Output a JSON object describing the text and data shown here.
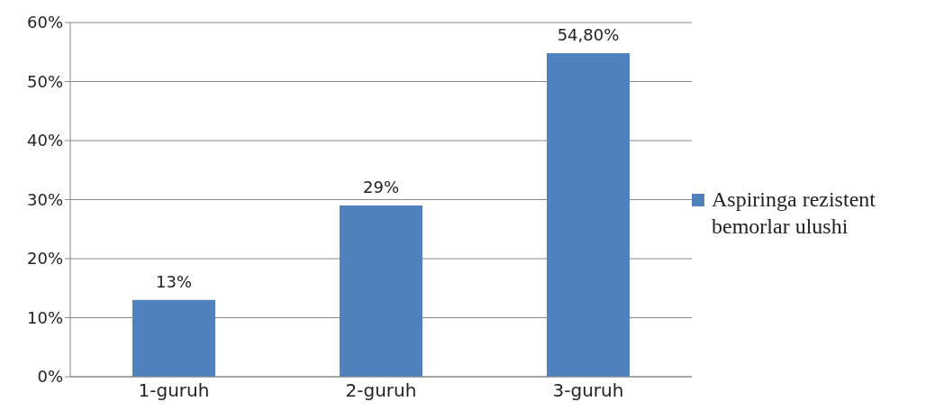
{
  "chart_data": {
    "type": "bar",
    "categories": [
      "1-guruh",
      "2-guruh",
      "3-guruh"
    ],
    "series": [
      {
        "name": "Aspiringa rezistent bemorlar ulushi",
        "color": "#4f81bd",
        "values": [
          13,
          29,
          54.8
        ],
        "value_labels": [
          "13%",
          "29%",
          "54,80%"
        ]
      }
    ],
    "ylim": [
      0,
      60
    ],
    "yticks": [
      {
        "value": 0,
        "label": "0%"
      },
      {
        "value": 10,
        "label": "10%"
      },
      {
        "value": 20,
        "label": "20%"
      },
      {
        "value": 30,
        "label": "30%"
      },
      {
        "value": 40,
        "label": "40%"
      },
      {
        "value": 50,
        "label": "50%"
      },
      {
        "value": 60,
        "label": "60%"
      }
    ],
    "grid": "y",
    "legend": "right"
  }
}
